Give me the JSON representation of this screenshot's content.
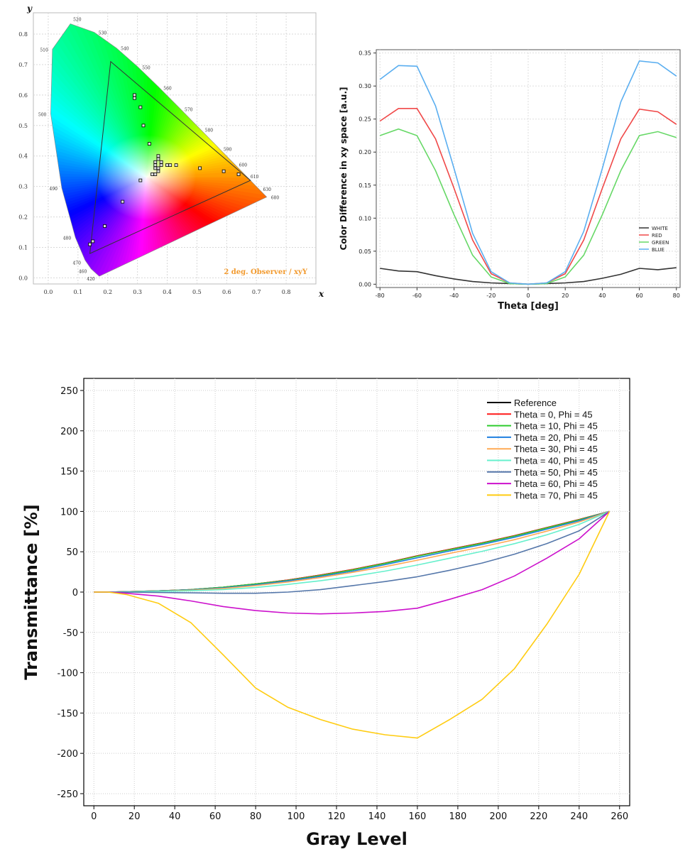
{
  "chart_data": [
    {
      "type": "scatter",
      "chart": "cie-1931-chromaticity",
      "xlabel": "x",
      "ylabel": "y",
      "xlim": [
        -0.05,
        0.9
      ],
      "ylim": [
        -0.02,
        0.87
      ],
      "xticks": [
        "0.0",
        "0.1",
        "0.2",
        "0.3",
        "0.4",
        "0.5",
        "0.6",
        "0.7",
        "0.8"
      ],
      "yticks": [
        "0.0",
        "0.1",
        "0.2",
        "0.3",
        "0.4",
        "0.5",
        "0.6",
        "0.7",
        "0.8"
      ],
      "annotation": "2 deg. Observer / xyY",
      "annotation_color": "#f29a2e",
      "grid": true,
      "locus_points": [
        {
          "nm": "420",
          "x": 0.1714,
          "y": 0.0051
        },
        {
          "nm": "460",
          "x": 0.144,
          "y": 0.0297
        },
        {
          "nm": "470",
          "x": 0.1241,
          "y": 0.0578
        },
        {
          "nm": "480",
          "x": 0.0913,
          "y": 0.1327
        },
        {
          "nm": "490",
          "x": 0.0454,
          "y": 0.295
        },
        {
          "nm": "500",
          "x": 0.0082,
          "y": 0.5384
        },
        {
          "nm": "510",
          "x": 0.0139,
          "y": 0.7502
        },
        {
          "nm": "520",
          "x": 0.0743,
          "y": 0.8338
        },
        {
          "nm": "530",
          "x": 0.1547,
          "y": 0.8059
        },
        {
          "nm": "540",
          "x": 0.2296,
          "y": 0.7543
        },
        {
          "nm": "550",
          "x": 0.3016,
          "y": 0.6923
        },
        {
          "nm": "560",
          "x": 0.3731,
          "y": 0.6245
        },
        {
          "nm": "570",
          "x": 0.4441,
          "y": 0.5547
        },
        {
          "nm": "580",
          "x": 0.5125,
          "y": 0.4866
        },
        {
          "nm": "590",
          "x": 0.5752,
          "y": 0.4242
        },
        {
          "nm": "600",
          "x": 0.627,
          "y": 0.3725
        },
        {
          "nm": "610",
          "x": 0.6658,
          "y": 0.334
        },
        {
          "nm": "630",
          "x": 0.7079,
          "y": 0.292
        },
        {
          "nm": "680",
          "x": 0.7347,
          "y": 0.2653
        }
      ],
      "gamut_triangle": [
        [
          0.21,
          0.71
        ],
        [
          0.14,
          0.08
        ],
        [
          0.68,
          0.32
        ]
      ],
      "markers": [
        [
          0.29,
          0.6
        ],
        [
          0.29,
          0.59
        ],
        [
          0.31,
          0.56
        ],
        [
          0.32,
          0.5
        ],
        [
          0.34,
          0.44
        ],
        [
          0.36,
          0.38
        ],
        [
          0.36,
          0.37
        ],
        [
          0.37,
          0.4
        ],
        [
          0.37,
          0.39
        ],
        [
          0.38,
          0.37
        ],
        [
          0.36,
          0.36
        ],
        [
          0.37,
          0.35
        ],
        [
          0.38,
          0.38
        ],
        [
          0.4,
          0.37
        ],
        [
          0.41,
          0.37
        ],
        [
          0.43,
          0.37
        ],
        [
          0.36,
          0.34
        ],
        [
          0.35,
          0.34
        ],
        [
          0.37,
          0.36
        ],
        [
          0.51,
          0.36
        ],
        [
          0.59,
          0.35
        ],
        [
          0.64,
          0.34
        ],
        [
          0.31,
          0.32
        ],
        [
          0.25,
          0.25
        ],
        [
          0.19,
          0.17
        ],
        [
          0.15,
          0.12
        ],
        [
          0.14,
          0.11
        ]
      ]
    },
    {
      "type": "line",
      "x": [
        -80,
        -70,
        -60,
        -50,
        -40,
        -30,
        -20,
        -10,
        0,
        10,
        20,
        30,
        40,
        50,
        60,
        70,
        80
      ],
      "xlabel": "Theta [deg]",
      "ylabel": "Color Difference in xy space [a.u.]",
      "xlim": [
        -82,
        82
      ],
      "ylim": [
        -0.005,
        0.355
      ],
      "xticks": [
        -80,
        -60,
        -40,
        -20,
        0,
        20,
        40,
        60,
        80
      ],
      "yticks": [
        "0.00",
        "0.05",
        "0.10",
        "0.15",
        "0.20",
        "0.25",
        "0.30",
        "0.35"
      ],
      "grid": true,
      "legend_position": "bottom-right",
      "series": [
        {
          "name": "WHITE",
          "color": "#333333",
          "values": [
            0.024,
            0.02,
            0.019,
            0.013,
            0.008,
            0.004,
            0.002,
            0.001,
            0.0,
            0.001,
            0.002,
            0.004,
            0.009,
            0.015,
            0.024,
            0.022,
            0.025
          ]
        },
        {
          "name": "RED",
          "color": "#f04848",
          "values": [
            0.247,
            0.266,
            0.266,
            0.22,
            0.145,
            0.067,
            0.016,
            0.002,
            0.0,
            0.002,
            0.016,
            0.067,
            0.145,
            0.22,
            0.265,
            0.261,
            0.242
          ]
        },
        {
          "name": "GREEN",
          "color": "#66d866",
          "values": [
            0.225,
            0.235,
            0.225,
            0.172,
            0.105,
            0.044,
            0.011,
            0.001,
            0.0,
            0.001,
            0.011,
            0.044,
            0.105,
            0.172,
            0.225,
            0.231,
            0.222
          ]
        },
        {
          "name": "BLUE",
          "color": "#5aaef0",
          "values": [
            0.31,
            0.331,
            0.33,
            0.27,
            0.175,
            0.077,
            0.019,
            0.002,
            0.0,
            0.002,
            0.019,
            0.08,
            0.175,
            0.276,
            0.338,
            0.335,
            0.315
          ]
        }
      ]
    },
    {
      "type": "line",
      "x": [
        0,
        7,
        16,
        32,
        48,
        64,
        80,
        96,
        112,
        128,
        144,
        160,
        176,
        192,
        208,
        224,
        240,
        255
      ],
      "xlabel": "Gray Level",
      "ylabel": "Transmittance [%]",
      "xlim": [
        -5,
        265
      ],
      "ylim": [
        -265,
        265
      ],
      "xticks": [
        0,
        20,
        40,
        60,
        80,
        100,
        120,
        140,
        160,
        180,
        200,
        220,
        240,
        260
      ],
      "yticks": [
        -250,
        -200,
        -150,
        -100,
        -50,
        0,
        50,
        100,
        150,
        200,
        250
      ],
      "grid": true,
      "legend_position": "top-right",
      "series": [
        {
          "name": "Reference",
          "color": "#000000",
          "values": [
            0,
            0,
            0.5,
            1.5,
            3,
            6,
            10,
            15,
            21,
            28,
            36,
            45,
            53,
            61,
            70,
            80,
            90,
            100
          ]
        },
        {
          "name": "Theta =  0, Phi =  45",
          "color": "#ff1a1a",
          "values": [
            0,
            0,
            0.5,
            1.5,
            3,
            6,
            10,
            15,
            21,
            28,
            36,
            45,
            53,
            61,
            70,
            80,
            90,
            100
          ]
        },
        {
          "name": "Theta = 10, Phi =  45",
          "color": "#2ecc2e",
          "values": [
            0,
            0,
            0.5,
            1.5,
            3,
            6,
            10,
            14.5,
            20.5,
            27.5,
            35.5,
            44.5,
            52.5,
            60.5,
            69.5,
            79.5,
            89.5,
            100
          ]
        },
        {
          "name": "Theta = 20, Phi =  45",
          "color": "#1f7fe0",
          "values": [
            0,
            0,
            0.4,
            1.3,
            2.7,
            5.3,
            9,
            13.8,
            19.5,
            26,
            34,
            42.5,
            51,
            59,
            68,
            78,
            88.5,
            100
          ]
        },
        {
          "name": "Theta = 30, Phi =  45",
          "color": "#ffaa55",
          "values": [
            0,
            0,
            0.3,
            1.0,
            2.3,
            4.5,
            8,
            12.5,
            18,
            24.5,
            31.5,
            39.5,
            48,
            56,
            65,
            75.5,
            87,
            100
          ]
        },
        {
          "name": "Theta = 40, Phi =  45",
          "color": "#66f0cc",
          "values": [
            0,
            0,
            0.2,
            0.8,
            1.7,
            3.2,
            5.6,
            9.5,
            14,
            19.5,
            26,
            33.5,
            42,
            50.5,
            60,
            71,
            84,
            100
          ]
        },
        {
          "name": "Theta = 50, Phi =  45",
          "color": "#5577aa",
          "values": [
            0,
            0,
            -0.2,
            -0.5,
            -1,
            -1.5,
            -1.5,
            0,
            3,
            8,
            13,
            19,
            27,
            36,
            47,
            60,
            76,
            100
          ]
        },
        {
          "name": "Theta = 60, Phi =  45",
          "color": "#cc11cc",
          "values": [
            0,
            0,
            -1.5,
            -5,
            -11,
            -18,
            -23,
            -26,
            -27,
            -26,
            -24,
            -20,
            -9,
            3,
            20,
            42,
            66,
            100
          ]
        },
        {
          "name": "Theta = 70, Phi =  45",
          "color": "#ffcc11",
          "values": [
            0,
            0,
            -3,
            -14,
            -38,
            -78,
            -119,
            -143,
            -158,
            -170,
            -177,
            -181,
            -158,
            -133,
            -95,
            -40,
            22,
            100
          ]
        }
      ]
    }
  ]
}
